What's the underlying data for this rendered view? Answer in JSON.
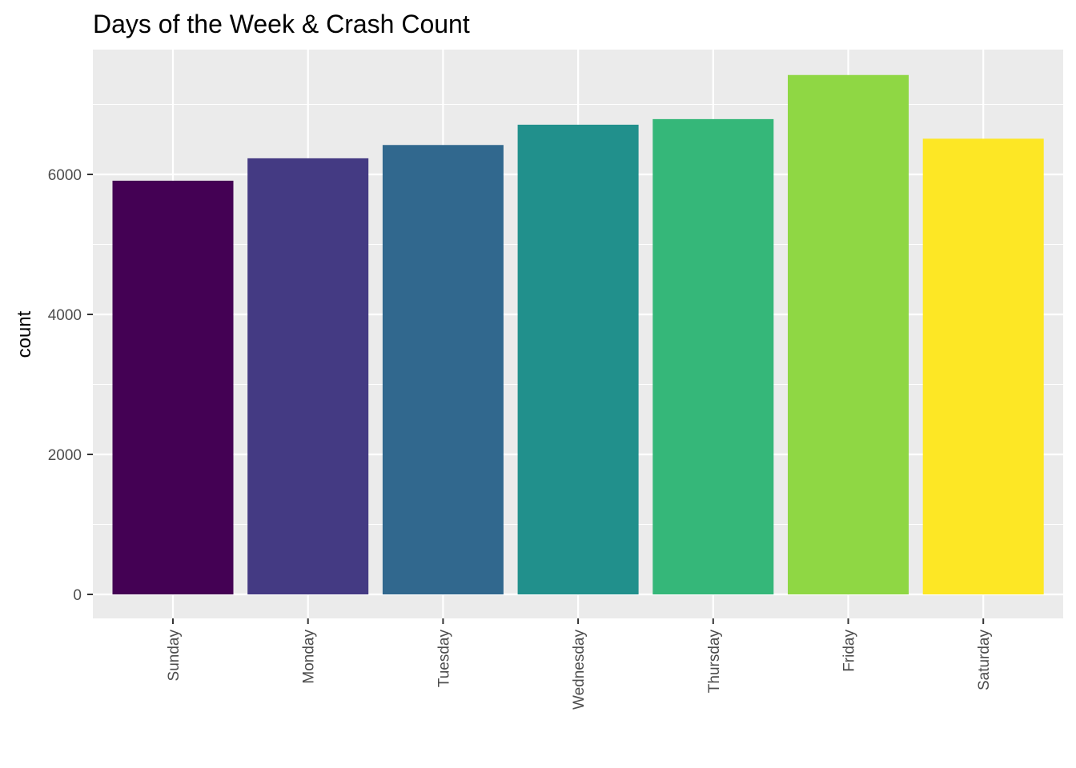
{
  "chart_data": {
    "type": "bar",
    "title": "Days of the Week & Crash Count",
    "xlabel": "",
    "ylabel": "count",
    "categories": [
      "Sunday",
      "Monday",
      "Tuesday",
      "Wednesday",
      "Thursday",
      "Friday",
      "Saturday"
    ],
    "values": [
      5910,
      6230,
      6420,
      6710,
      6790,
      7420,
      6510
    ],
    "colors": [
      "#440154",
      "#443A83",
      "#31688E",
      "#21908C",
      "#35B779",
      "#8FD744",
      "#FDE725"
    ],
    "ylim": [
      0,
      7700
    ],
    "yticks": [
      0,
      2000,
      4000,
      6000
    ],
    "ytick_labels": [
      "0",
      "2000",
      "4000",
      "6000"
    ],
    "grid": true,
    "legend": "none",
    "panel_background": "#EBEBEB",
    "grid_color": "#FFFFFF"
  }
}
